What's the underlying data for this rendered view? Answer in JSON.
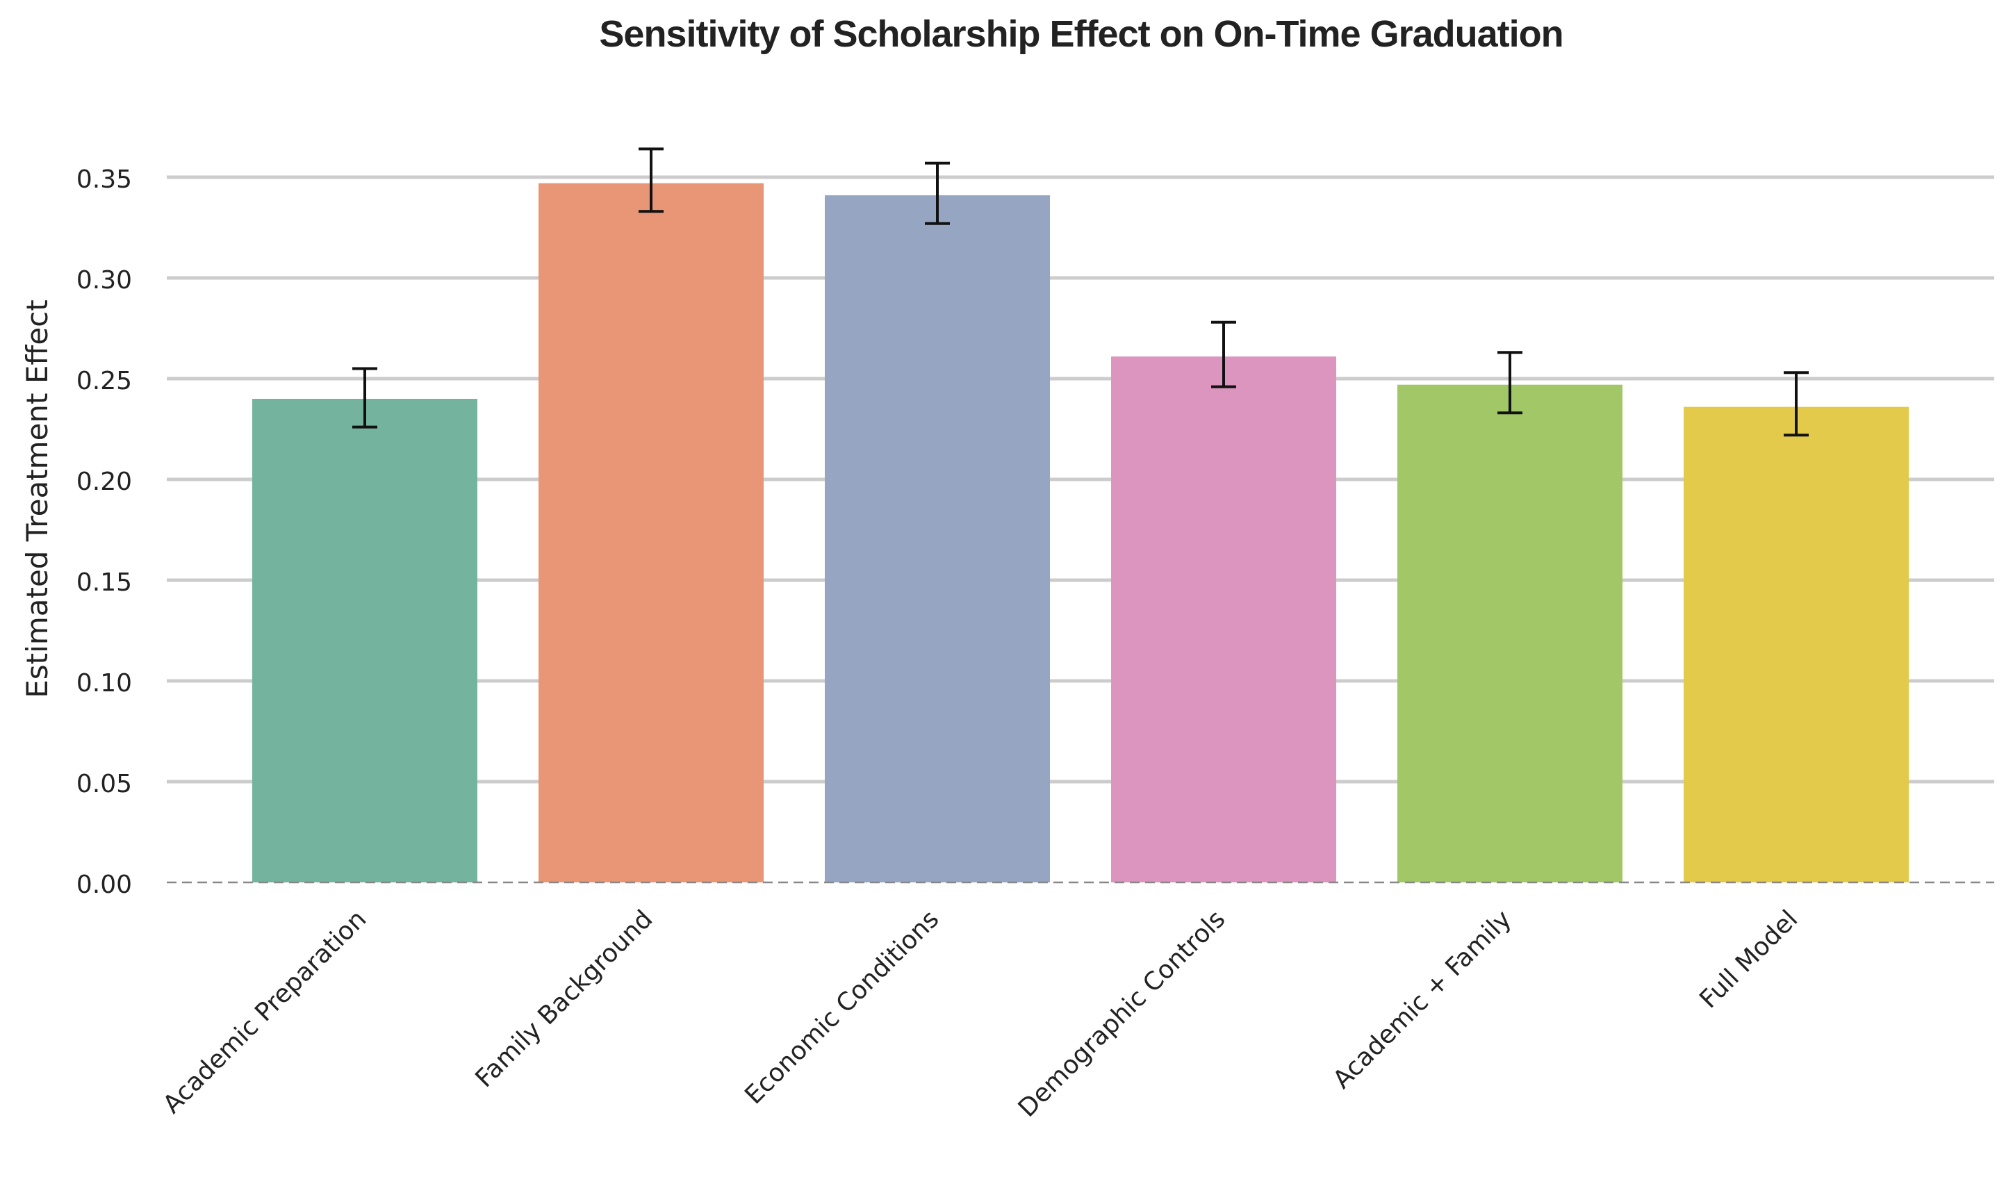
{
  "chart_data": {
    "type": "bar",
    "title": "Sensitivity of Scholarship Effect on On-Time Graduation",
    "xlabel": "",
    "ylabel": "Estimated Treatment Effect",
    "ylim": [
      0,
      0.365
    ],
    "yticks": [
      "0.00",
      "0.05",
      "0.10",
      "0.15",
      "0.20",
      "0.25",
      "0.30",
      "0.35"
    ],
    "grid": "horizontal",
    "categories": [
      "Academic Preparation",
      "Family Background",
      "Economic Conditions",
      "Demographic Controls",
      "Academic + Family",
      "Full Model"
    ],
    "values": [
      0.24,
      0.347,
      0.341,
      0.261,
      0.247,
      0.236
    ],
    "error_bars": [
      {
        "low": 0.226,
        "high": 0.255
      },
      {
        "low": 0.333,
        "high": 0.364
      },
      {
        "low": 0.327,
        "high": 0.357
      },
      {
        "low": 0.246,
        "high": 0.278
      },
      {
        "low": 0.233,
        "high": 0.263
      },
      {
        "low": 0.222,
        "high": 0.253
      }
    ],
    "colors": [
      "#74b49f",
      "#e89676",
      "#96a5c2",
      "#db95be",
      "#a2c767",
      "#e3ca4b"
    ],
    "reference_line": 0
  }
}
